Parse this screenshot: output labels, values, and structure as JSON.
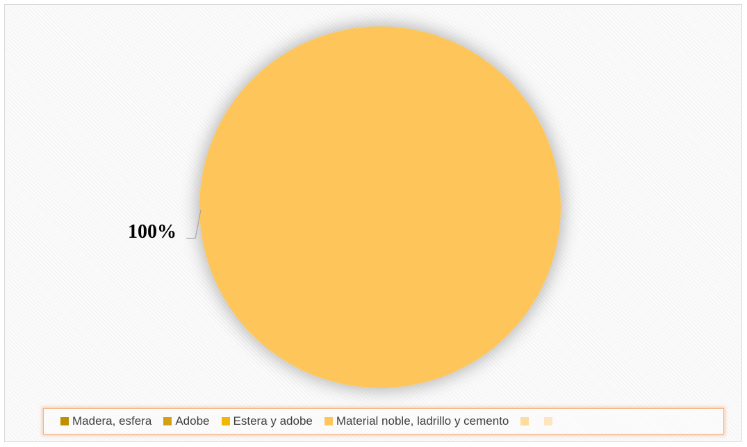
{
  "chart_data": {
    "type": "pie",
    "categories": [
      "Madera, esfera",
      "Adobe",
      "Estera y adobe",
      "Material noble, ladrillo y cemento",
      "",
      ""
    ],
    "values": [
      0,
      0,
      0,
      100,
      0,
      0
    ],
    "colors": [
      "#bf8f00",
      "#d4a017",
      "#f2b705",
      "#fec65a",
      "#fddca0",
      "#fde5c0"
    ],
    "data_labels": [
      {
        "category": "Material noble, ladrillo y cemento",
        "text": "100%"
      }
    ],
    "legend": {
      "placement": "bottom"
    }
  }
}
